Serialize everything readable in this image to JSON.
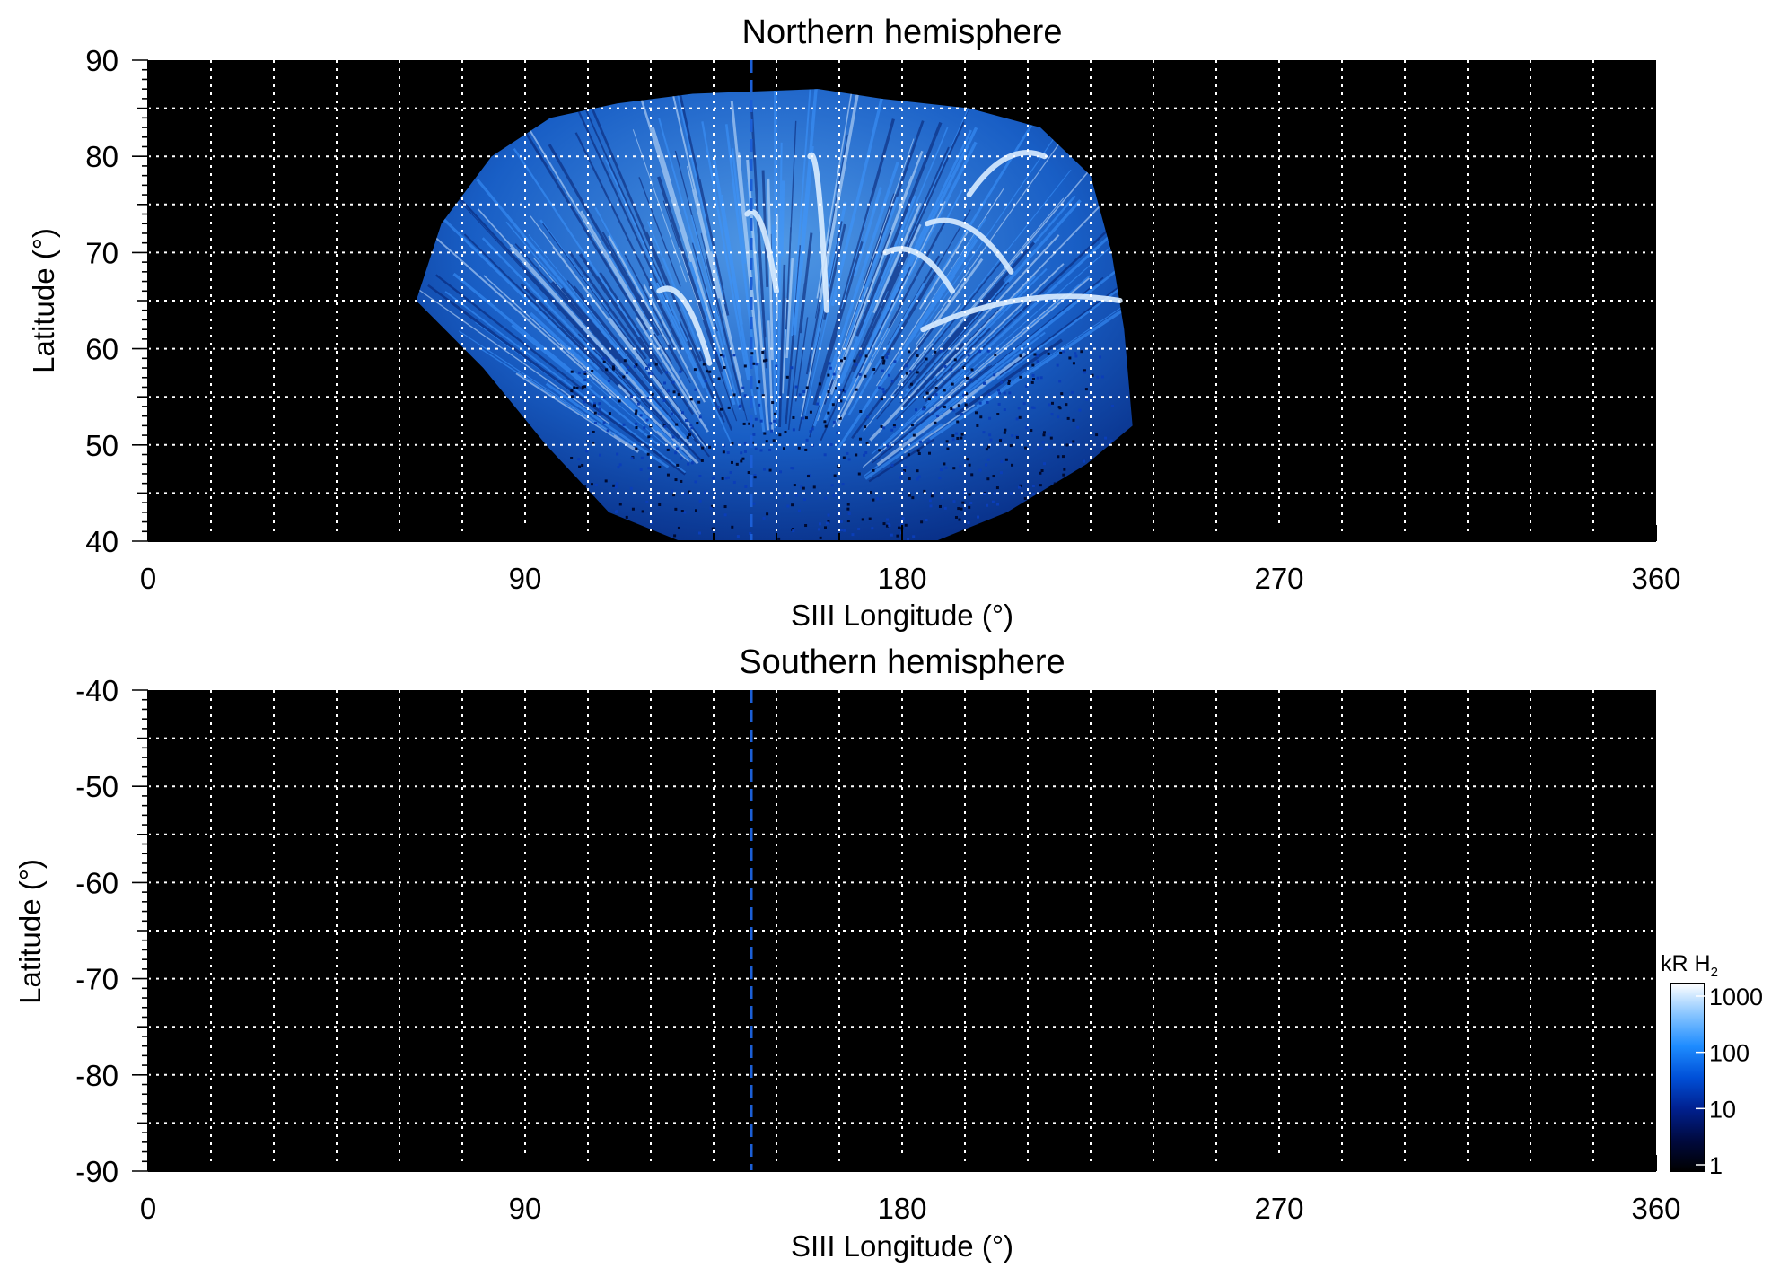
{
  "chart_data": [
    {
      "type": "heatmap",
      "title": "Northern hemisphere",
      "xlabel": "SIII Longitude (°)",
      "ylabel": "Latitude (°)",
      "xlim": [
        0,
        360
      ],
      "ylim": [
        40,
        90
      ],
      "x_ticks": [
        0,
        90,
        180,
        270,
        360
      ],
      "y_ticks": [
        40,
        50,
        60,
        70,
        80,
        90
      ],
      "grid": true,
      "reference_longitude": 144,
      "background": "#000000",
      "emission_footprint": {
        "edge": [
          {
            "lon": 127,
            "lat": 40
          },
          {
            "lon": 110,
            "lat": 43
          },
          {
            "lon": 95,
            "lat": 50
          },
          {
            "lon": 80,
            "lat": 58
          },
          {
            "lon": 64,
            "lat": 65
          },
          {
            "lon": 70,
            "lat": 73
          },
          {
            "lon": 82,
            "lat": 80
          },
          {
            "lon": 96,
            "lat": 84
          },
          {
            "lon": 112,
            "lat": 85.5
          },
          {
            "lon": 130,
            "lat": 86.5
          },
          {
            "lon": 160,
            "lat": 87
          },
          {
            "lon": 175,
            "lat": 86
          },
          {
            "lon": 196,
            "lat": 85
          },
          {
            "lon": 213,
            "lat": 83
          },
          {
            "lon": 225,
            "lat": 78
          },
          {
            "lon": 230,
            "lat": 70
          },
          {
            "lon": 233,
            "lat": 62
          },
          {
            "lon": 235,
            "lat": 52
          },
          {
            "lon": 224,
            "lat": 48
          },
          {
            "lon": 205,
            "lat": 43
          },
          {
            "lon": 188,
            "lat": 40
          }
        ],
        "arcs": [
          {
            "lon1": 122,
            "lat1": 66,
            "lon2": 134,
            "lat2": 58.5
          },
          {
            "lon1": 143,
            "lat1": 74,
            "lon2": 150,
            "lat2": 66
          },
          {
            "lon1": 158,
            "lat1": 80,
            "lon2": 162,
            "lat2": 64
          },
          {
            "lon1": 176,
            "lat1": 70,
            "lon2": 192,
            "lat2": 66
          },
          {
            "lon1": 186,
            "lat1": 73,
            "lon2": 206,
            "lat2": 68
          },
          {
            "lon1": 185,
            "lat1": 62,
            "lon2": 232,
            "lat2": 65
          },
          {
            "lon1": 196,
            "lat1": 76,
            "lon2": 214,
            "lat2": 80
          }
        ]
      }
    },
    {
      "type": "heatmap",
      "title": "Southern hemisphere",
      "xlabel": "SIII Longitude (°)",
      "ylabel": "Latitude (°)",
      "xlim": [
        0,
        360
      ],
      "ylim": [
        -90,
        -40
      ],
      "x_ticks": [
        0,
        90,
        180,
        270,
        360
      ],
      "y_ticks": [
        -40,
        -50,
        -60,
        -70,
        -80,
        -90
      ],
      "grid": true,
      "reference_longitude": 144,
      "background": "#000000"
    }
  ],
  "colorbar": {
    "label": "kR H",
    "subscript": "2",
    "scale": "log",
    "ticks": [
      "1000",
      "100",
      "10",
      "1"
    ],
    "colors": [
      "#000000",
      "#000a40",
      "#00208f",
      "#0050d8",
      "#1e8cff",
      "#86c4ff",
      "#ffffff"
    ]
  },
  "colors": {
    "emission_dark": "#0a3fb0",
    "emission_mid": "#2f88ff",
    "emission_bright": "#d9ecff",
    "reference_line": "#1c5fd6",
    "grid": "#ffffff"
  }
}
